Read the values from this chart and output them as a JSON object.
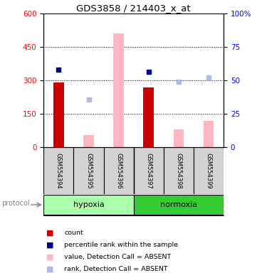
{
  "title": "GDS3858 / 214403_x_at",
  "samples": [
    "GSM554394",
    "GSM554395",
    "GSM554396",
    "GSM554397",
    "GSM554398",
    "GSM554399"
  ],
  "protocol_label": "protocol",
  "group_hypoxia": {
    "name": "hypoxia",
    "indices": [
      0,
      1,
      2
    ],
    "color": "#aaffaa"
  },
  "group_normoxia": {
    "name": "normoxia",
    "indices": [
      3,
      4,
      5
    ],
    "color": "#33cc33"
  },
  "count_values": [
    290,
    null,
    null,
    270,
    null,
    null
  ],
  "percentile_rank_values": [
    350,
    null,
    null,
    340,
    null,
    null
  ],
  "value_absent": [
    null,
    55,
    510,
    null,
    80,
    120
  ],
  "rank_absent": [
    null,
    215,
    null,
    null,
    295,
    315
  ],
  "left_ylim": [
    0,
    600
  ],
  "right_ylim": [
    0,
    100
  ],
  "left_yticks": [
    0,
    150,
    300,
    450,
    600
  ],
  "right_yticks": [
    0,
    25,
    50,
    75,
    100
  ],
  "right_yticklabels": [
    "0",
    "25",
    "50",
    "75",
    "100%"
  ],
  "count_color": "#cc0000",
  "percentile_color": "#00008b",
  "value_absent_color": "#ffb6c1",
  "rank_absent_color": "#b0b8e8",
  "sample_box_color": "#d3d3d3"
}
